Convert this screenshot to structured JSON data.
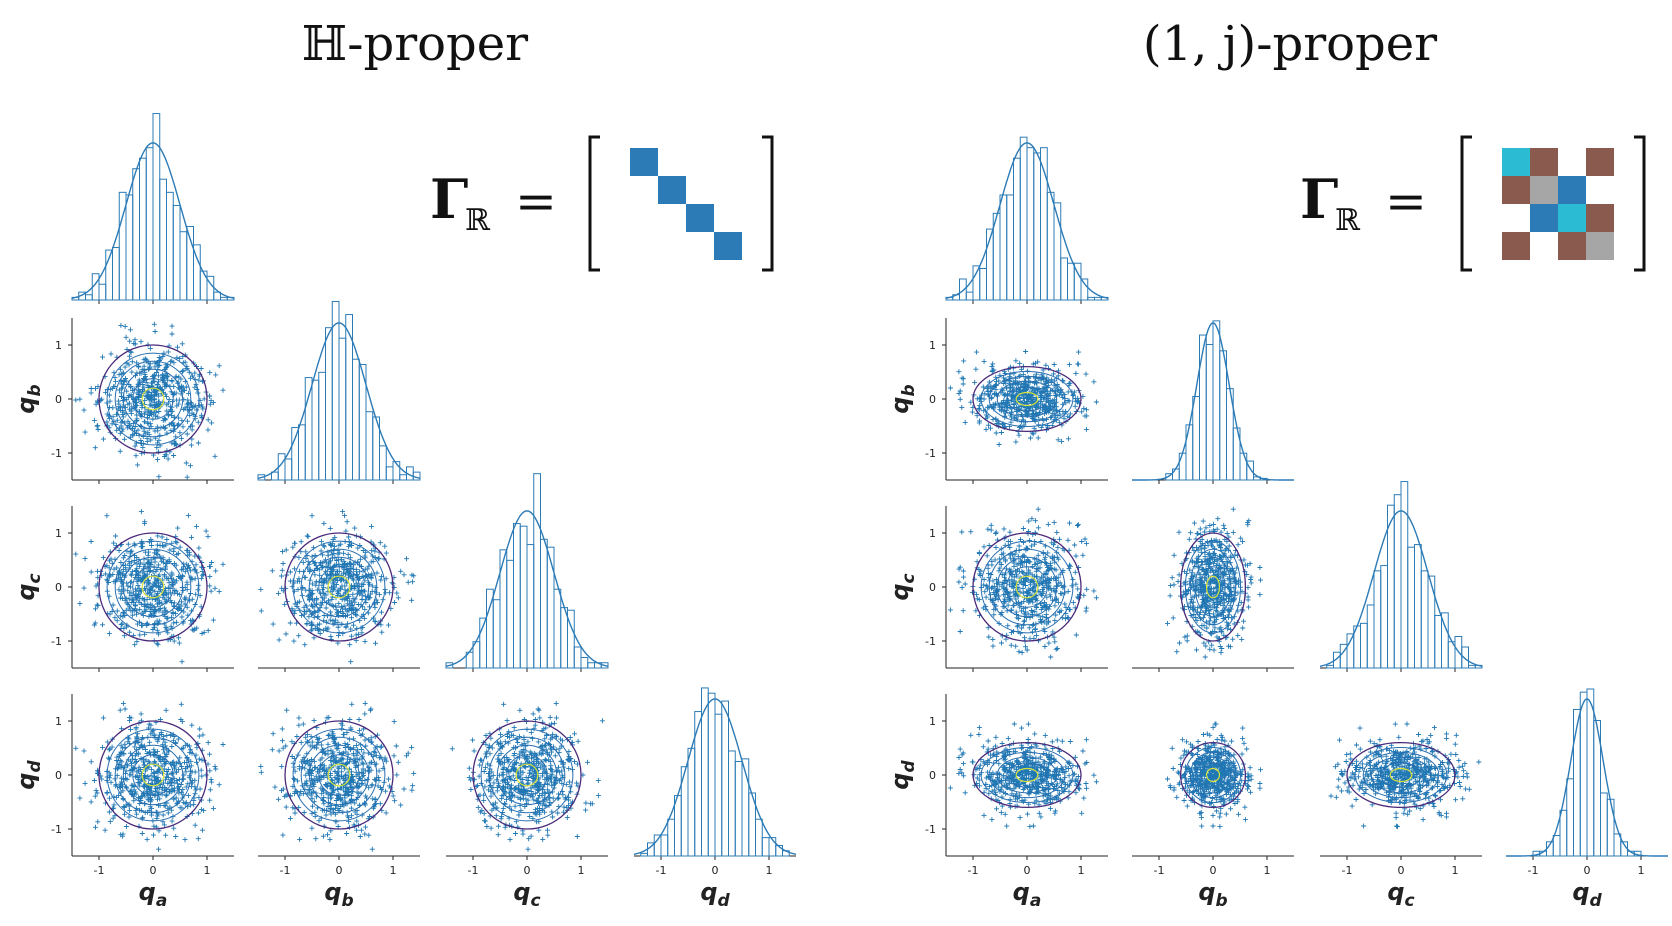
{
  "panels": [
    {
      "title": "ℍ-proper",
      "gamma": {
        "symbol": "Γ",
        "subscript": "ℝ",
        "eq": "="
      },
      "matrix": [
        [
          "blue",
          "",
          "",
          ""
        ],
        [
          "",
          "blue",
          "",
          ""
        ],
        [
          "",
          "",
          "blue",
          ""
        ],
        [
          "",
          "",
          "",
          "blue"
        ]
      ]
    },
    {
      "title": "(1, j)-proper",
      "gamma": {
        "symbol": "Γ",
        "subscript": "ℝ",
        "eq": "="
      },
      "matrix": [
        [
          "cyan",
          "brown",
          "",
          "brown"
        ],
        [
          "brown",
          "gray",
          "blue",
          ""
        ],
        [
          "",
          "blue",
          "cyan",
          "brown"
        ],
        [
          "brown",
          "",
          "brown",
          "gray"
        ]
      ]
    }
  ],
  "colors": {
    "blue": "#2c7bb6",
    "cyan": "#2bbcd4",
    "brown": "#8b5a4f",
    "gray": "#a6a6a6",
    "hist": "#2c7bb6",
    "scatter": "#1f77b4",
    "contour_outer": "#4b2a7a",
    "contour_mid": "#2a6fb0",
    "contour_inner": "#d8e23a"
  },
  "chart_data": [
    {
      "type": "scatter",
      "title": "ℍ-proper",
      "variables": [
        "q_a",
        "q_b",
        "q_c",
        "q_d"
      ],
      "axis_labels": {
        "q_a": [
          "q",
          "a"
        ],
        "q_b": [
          "q",
          "b"
        ],
        "q_c": [
          "q",
          "c"
        ],
        "q_d": [
          "q",
          "d"
        ]
      },
      "xlim": [
        -1.5,
        1.5
      ],
      "ylim": [
        -1.5,
        1.5
      ],
      "xticks": [
        "-1",
        "0",
        "1"
      ],
      "yticks": [
        "1",
        "0",
        "-1"
      ],
      "std": [
        0.5,
        0.5,
        0.5,
        0.5
      ],
      "correlation": [
        [
          1,
          0,
          0,
          0
        ],
        [
          0,
          1,
          0,
          0
        ],
        [
          0,
          0,
          1,
          0
        ],
        [
          0,
          0,
          0,
          1
        ]
      ],
      "diagonal": "histogram with gaussian density curve",
      "lower": "scatter with density contours",
      "bins": 24,
      "points_per_plot": 600
    },
    {
      "type": "scatter",
      "title": "(1, j)-proper",
      "variables": [
        "q_a",
        "q_b",
        "q_c",
        "q_d"
      ],
      "axis_labels": {
        "q_a": [
          "q",
          "a"
        ],
        "q_b": [
          "q",
          "b"
        ],
        "q_c": [
          "q",
          "c"
        ],
        "q_d": [
          "q",
          "d"
        ]
      },
      "xlim": [
        -1.5,
        1.5
      ],
      "ylim": [
        -1.5,
        1.5
      ],
      "xticks": [
        "-1",
        "0",
        "1"
      ],
      "yticks": [
        "1",
        "0",
        "-1"
      ],
      "std": [
        0.5,
        0.3,
        0.5,
        0.3
      ],
      "correlation": [
        [
          1,
          0,
          0,
          0
        ],
        [
          0,
          1,
          0,
          0
        ],
        [
          0,
          0,
          1,
          0
        ],
        [
          0,
          0,
          0,
          1
        ]
      ],
      "diagonal": "histogram with gaussian density curve",
      "lower": "scatter with density contours",
      "bins": 24,
      "points_per_plot": 600
    }
  ]
}
